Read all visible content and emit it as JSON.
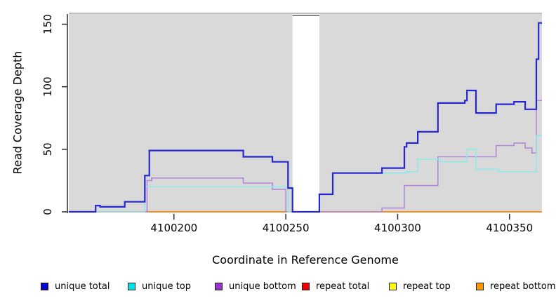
{
  "chart_data": {
    "type": "line",
    "style": "step-after",
    "title": "",
    "xlabel": "Coordinate in Reference Genome",
    "ylabel": "Read Coverage Depth",
    "xlim": [
      4100153,
      4100364.5
    ],
    "ylim": [
      0,
      150
    ],
    "xticks": [
      4100200,
      4100250,
      4100300,
      4100350
    ],
    "yticks": [
      0,
      50,
      100,
      150
    ],
    "grid": false,
    "plot_background": "#d9d9d9",
    "gap_background": "#ffffff",
    "missing_data_gap": {
      "from": 4100253,
      "to": 4100265
    },
    "legend_position": "bottom",
    "legend": [
      {
        "label": "unique total",
        "color": "#0000cc"
      },
      {
        "label": "unique top",
        "color": "#00e0e8"
      },
      {
        "label": "unique bottom",
        "color": "#9933cc"
      },
      {
        "label": "repeat total",
        "color": "#ee0000"
      },
      {
        "label": "repeat top",
        "color": "#ffff00"
      },
      {
        "label": "repeat bottom",
        "color": "#ff9900"
      }
    ],
    "series": [
      {
        "name": "repeat top",
        "line_color": "#ffee00",
        "line_width": 1.5,
        "points": [
          [
            4100153,
            0
          ],
          [
            4100364.5,
            0
          ]
        ]
      },
      {
        "name": "repeat total",
        "line_color": "#cc3355",
        "line_width": 1.5,
        "points": [
          [
            4100153,
            0
          ],
          [
            4100364.5,
            0
          ]
        ]
      },
      {
        "name": "repeat bottom",
        "line_color": "#ff8c1a",
        "line_width": 2,
        "points": [
          [
            4100153,
            0
          ],
          [
            4100364.5,
            0
          ]
        ]
      },
      {
        "name": "unique bottom",
        "line_color": "#b587d8",
        "line_width": 1.6,
        "points": [
          [
            4100153,
            0
          ],
          [
            4100188,
            25
          ],
          [
            4100190,
            27
          ],
          [
            4100231,
            23
          ],
          [
            4100244,
            18
          ],
          [
            4100250,
            0
          ],
          [
            4100293,
            3
          ],
          [
            4100303,
            21
          ],
          [
            4100318,
            44
          ],
          [
            4100344,
            53
          ],
          [
            4100352,
            55
          ],
          [
            4100357,
            51
          ],
          [
            4100360,
            47
          ],
          [
            4100362,
            89
          ],
          [
            4100364.5,
            89
          ]
        ]
      },
      {
        "name": "unique top",
        "line_color": "#8fe9e9",
        "line_width": 1.6,
        "points": [
          [
            4100153,
            0
          ],
          [
            4100187,
            20
          ],
          [
            4100251,
            0
          ],
          [
            4100265,
            14
          ],
          [
            4100271,
            31
          ],
          [
            4100304,
            32
          ],
          [
            4100309,
            42
          ],
          [
            4100319,
            40
          ],
          [
            4100331,
            50
          ],
          [
            4100335,
            34
          ],
          [
            4100345,
            32
          ],
          [
            4100362,
            61
          ],
          [
            4100364.5,
            61
          ]
        ]
      },
      {
        "name": "unique total",
        "line_color": "#2727cf",
        "line_width": 2.2,
        "points": [
          [
            4100153,
            0
          ],
          [
            4100165,
            5
          ],
          [
            4100167,
            4
          ],
          [
            4100178,
            8
          ],
          [
            4100187,
            29
          ],
          [
            4100189,
            49
          ],
          [
            4100231,
            44
          ],
          [
            4100244,
            40
          ],
          [
            4100251,
            19
          ],
          [
            4100253,
            0
          ],
          [
            4100265,
            14
          ],
          [
            4100271,
            31
          ],
          [
            4100293,
            35
          ],
          [
            4100303,
            52
          ],
          [
            4100304,
            55
          ],
          [
            4100309,
            64
          ],
          [
            4100318,
            87
          ],
          [
            4100330,
            89
          ],
          [
            4100331,
            97
          ],
          [
            4100335,
            79
          ],
          [
            4100344,
            86
          ],
          [
            4100352,
            88
          ],
          [
            4100357,
            82
          ],
          [
            4100362,
            122
          ],
          [
            4100363,
            151
          ],
          [
            4100364.5,
            151
          ]
        ]
      }
    ]
  }
}
